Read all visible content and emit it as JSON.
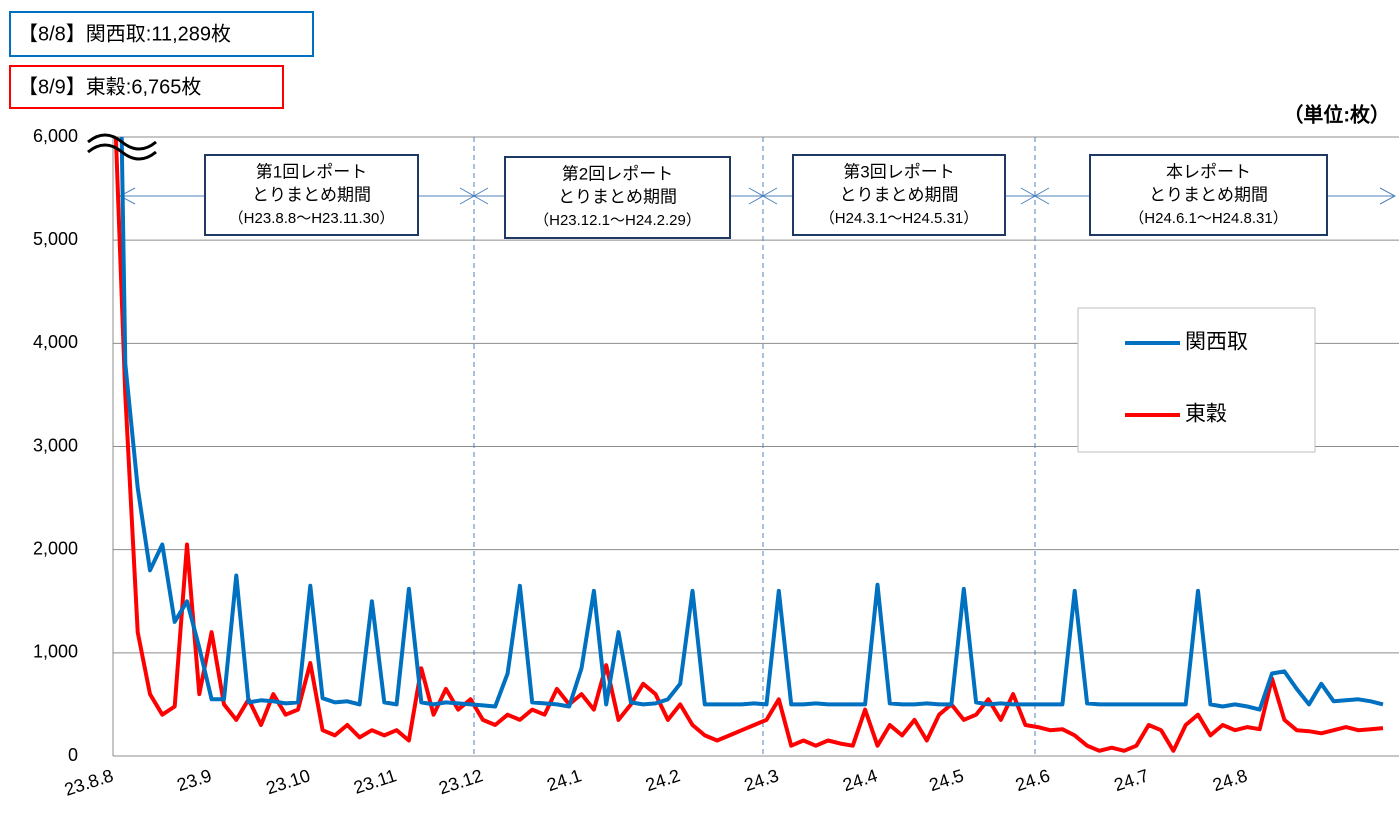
{
  "chart_data": {
    "type": "line",
    "header_blue": "【8/8】関西取:11,289枚",
    "header_red": "【8/9】東穀:6,765枚",
    "unit": "（単位:枚）",
    "periods": [
      {
        "title": "第1回レポート",
        "sub": "とりまとめ期間",
        "range": "（H23.8.8～H23.11.30）"
      },
      {
        "title": "第2回レポート",
        "sub": "とりまとめ期間",
        "range": "（H23.12.1～H24.2.29）"
      },
      {
        "title": "第3回レポート",
        "sub": "とりまとめ期間",
        "range": "（H24.3.1～H24.5.31）"
      },
      {
        "title": "本レポート",
        "sub": "とりまとめ期間",
        "range": "（H24.6.1～H24.8.31）"
      }
    ],
    "categories": [
      "23.8.8",
      null,
      null,
      null,
      null,
      null,
      null,
      "23.9",
      null,
      null,
      null,
      null,
      null,
      null,
      null,
      "23.10",
      null,
      null,
      null,
      null,
      null,
      null,
      "23.11",
      null,
      null,
      null,
      null,
      null,
      null,
      "23.12",
      null,
      null,
      null,
      null,
      null,
      null,
      null,
      "24.1",
      null,
      null,
      null,
      null,
      null,
      null,
      null,
      "24.2",
      null,
      null,
      null,
      null,
      null,
      null,
      null,
      "24.3",
      null,
      null,
      null,
      null,
      null,
      null,
      null,
      "24.4",
      null,
      null,
      null,
      null,
      null,
      null,
      "24.5",
      null,
      null,
      null,
      null,
      null,
      null,
      "24.6",
      null,
      null,
      null,
      null,
      null,
      null,
      null,
      "24.7",
      null,
      null,
      null,
      null,
      null,
      null,
      null,
      "24.8",
      null,
      null,
      null,
      null,
      null,
      null,
      null,
      null,
      null,
      null,
      null,
      null
    ],
    "series": [
      {
        "name": "関西取",
        "color": "#0070c0",
        "values": [
          11289,
          3800,
          2600,
          1800,
          2050,
          1300,
          1500,
          1050,
          550,
          550,
          1750,
          520,
          540,
          530,
          510,
          520,
          1650,
          560,
          520,
          530,
          500,
          1500,
          520,
          500,
          1620,
          520,
          500,
          520,
          510,
          500,
          490,
          480,
          800,
          1650,
          520,
          510,
          500,
          480,
          850,
          1600,
          500,
          1200,
          520,
          500,
          510,
          550,
          700,
          1600,
          500,
          500,
          500,
          500,
          510,
          500,
          1600,
          500,
          500,
          510,
          500,
          500,
          500,
          500,
          1660,
          510,
          500,
          500,
          510,
          500,
          500,
          1620,
          520,
          500,
          510,
          500,
          500,
          500,
          500,
          500,
          1600,
          510,
          500,
          500,
          500,
          500,
          500,
          500,
          500,
          500,
          1600,
          500,
          480,
          500,
          480,
          450,
          800,
          820,
          650,
          500,
          700,
          530,
          540,
          550,
          530,
          500
        ]
      },
      {
        "name": "東穀",
        "color": "#ff0000",
        "values": [
          6765,
          3500,
          1200,
          600,
          400,
          480,
          2050,
          600,
          1200,
          500,
          350,
          550,
          300,
          600,
          400,
          450,
          900,
          250,
          200,
          300,
          180,
          250,
          200,
          250,
          150,
          850,
          400,
          650,
          450,
          550,
          350,
          300,
          400,
          350,
          450,
          400,
          650,
          500,
          600,
          450,
          880,
          350,
          500,
          700,
          600,
          350,
          500,
          300,
          200,
          150,
          200,
          250,
          300,
          350,
          550,
          100,
          150,
          100,
          150,
          120,
          100,
          450,
          100,
          300,
          200,
          350,
          150,
          400,
          500,
          350,
          400,
          550,
          350,
          600,
          300,
          280,
          250,
          260,
          200,
          100,
          50,
          80,
          50,
          100,
          300,
          250,
          50,
          300,
          400,
          200,
          300,
          250,
          280,
          260,
          750,
          350,
          250,
          240,
          220,
          250,
          280,
          250,
          260,
          270
        ]
      }
    ],
    "ylim": [
      0,
      6000
    ],
    "yticks": [
      0,
      {
        "value": 1000,
        "label": "1,000"
      },
      {
        "value": 2000,
        "label": "2,000"
      },
      {
        "value": 3000,
        "label": "3,000"
      },
      {
        "value": 4000,
        "label": "4,000"
      },
      {
        "value": 5000,
        "label": "5,000"
      },
      {
        "value": 6000,
        "label": "6,000"
      }
    ],
    "grid": true
  }
}
